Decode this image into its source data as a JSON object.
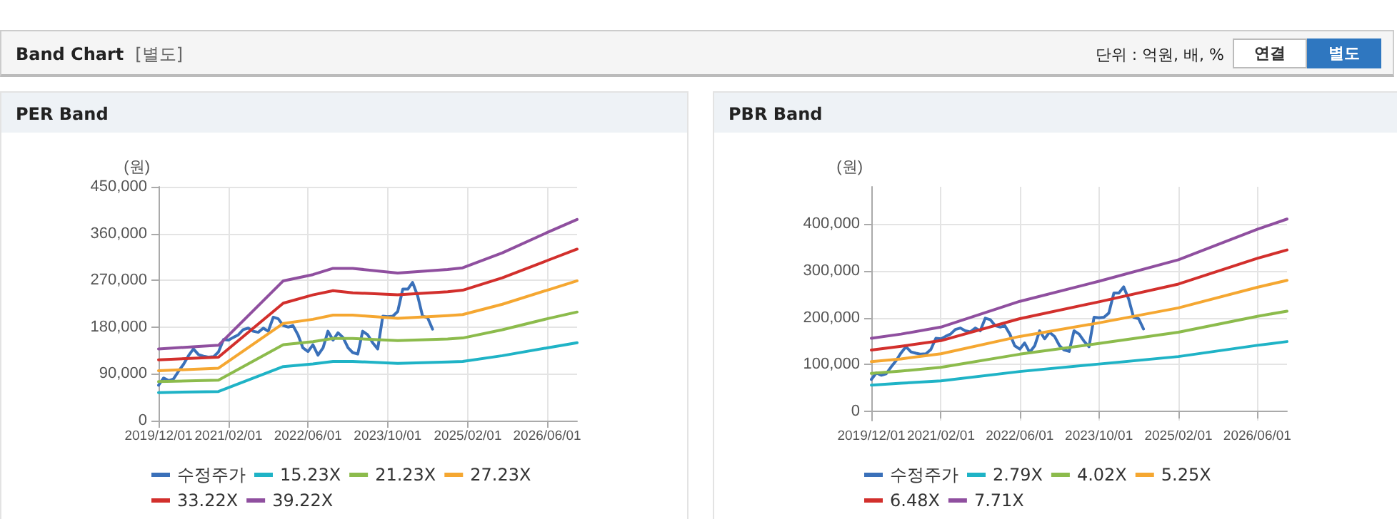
{
  "chart_data": [
    {
      "type": "other",
      "title": "Band Chart",
      "subtitle": "[별도]",
      "annotations": [
        "단위 : 억원, 배, %",
        "연결",
        "별도"
      ]
    },
    {
      "type": "line",
      "title": "PER Band",
      "ylabel": "(원)",
      "xlim": [
        "2019-12-01",
        "2026-12-01"
      ],
      "xticks": [
        {
          "value": "2019-12-01",
          "label": "2019/12/01"
        },
        {
          "value": "2021-02-01",
          "label": "2021/02/01"
        },
        {
          "value": "2022-06-01",
          "label": "2022/06/01"
        },
        {
          "value": "2023-10-01",
          "label": "2023/10/01"
        },
        {
          "value": "2025-02-01",
          "label": "2025/02/01"
        },
        {
          "value": "2026-06-01",
          "label": "2026/06/01"
        }
      ],
      "ylim": [
        0,
        450000
      ],
      "yticks": [
        {
          "value": 0,
          "label": "0"
        },
        {
          "value": 90000,
          "label": "90,000"
        },
        {
          "value": 180000,
          "label": "180,000"
        },
        {
          "value": 270000,
          "label": "270,000"
        },
        {
          "value": 360000,
          "label": "360,000"
        },
        {
          "value": 450000,
          "label": "450,000"
        }
      ],
      "grid": true,
      "legend": "bottom",
      "marker": "none",
      "line_style": "solid",
      "series": [
        {
          "name": "수정주가",
          "color": "#3a70b9",
          "x": [
            "2019-12",
            "2020-01",
            "2020-02",
            "2020-03",
            "2020-04",
            "2020-05",
            "2020-06",
            "2020-07",
            "2020-08",
            "2020-09",
            "2020-10",
            "2020-11",
            "2020-12",
            "2021-01",
            "2021-02",
            "2021-03",
            "2021-04",
            "2021-05",
            "2021-06",
            "2021-07",
            "2021-08",
            "2021-09",
            "2021-10",
            "2021-11",
            "2021-12",
            "2022-01",
            "2022-02",
            "2022-03",
            "2022-04",
            "2022-05",
            "2022-06",
            "2022-07",
            "2022-08",
            "2022-09",
            "2022-10",
            "2022-11",
            "2022-12",
            "2023-01",
            "2023-02",
            "2023-03",
            "2023-04",
            "2023-05",
            "2023-06",
            "2023-07",
            "2023-08",
            "2023-09",
            "2023-10",
            "2023-11",
            "2023-12",
            "2024-01",
            "2024-02",
            "2024-03",
            "2024-04",
            "2024-05",
            "2024-06",
            "2024-07"
          ],
          "values": [
            68000,
            82000,
            77000,
            80000,
            95000,
            108000,
            125000,
            138000,
            127000,
            124000,
            122000,
            123000,
            132000,
            156000,
            155000,
            160000,
            165000,
            175000,
            178000,
            172000,
            170000,
            178000,
            172000,
            199000,
            196000,
            183000,
            180000,
            183000,
            165000,
            140000,
            133000,
            146000,
            126000,
            140000,
            172000,
            155000,
            169000,
            160000,
            140000,
            131000,
            128000,
            172000,
            165000,
            150000,
            138000,
            201000,
            200000,
            201000,
            210000,
            253000,
            253000,
            266000,
            240000,
            201000,
            198000,
            176000
          ]
        },
        {
          "name": "15.23X",
          "color": "#1fb3c6",
          "x": [
            "2019-12",
            "2020-12",
            "2022-01",
            "2022-07",
            "2022-11",
            "2023-03",
            "2023-12",
            "2024-10",
            "2025-01",
            "2025-09",
            "2026-06",
            "2026-12"
          ],
          "values": [
            54000,
            56000,
            104000,
            109000,
            114000,
            114000,
            110000,
            113000,
            114000,
            125000,
            140000,
            150000
          ]
        },
        {
          "name": "21.23X",
          "color": "#8cbb4c",
          "x": [
            "2019-12",
            "2020-12",
            "2022-01",
            "2022-07",
            "2022-11",
            "2023-03",
            "2023-12",
            "2024-10",
            "2025-01",
            "2025-09",
            "2026-06",
            "2026-12"
          ],
          "values": [
            75000,
            78000,
            146000,
            152000,
            158000,
            158000,
            154000,
            157000,
            159000,
            175000,
            196000,
            209000
          ]
        },
        {
          "name": "27.23X",
          "color": "#f5a731",
          "x": [
            "2019-12",
            "2020-12",
            "2022-01",
            "2022-07",
            "2022-11",
            "2023-03",
            "2023-12",
            "2024-10",
            "2025-01",
            "2025-09",
            "2026-06",
            "2026-12"
          ],
          "values": [
            96000,
            101000,
            187000,
            195000,
            203000,
            203000,
            197000,
            202000,
            204000,
            224000,
            251000,
            269000
          ]
        },
        {
          "name": "33.22X",
          "color": "#d22f2c",
          "x": [
            "2019-12",
            "2020-12",
            "2022-01",
            "2022-07",
            "2022-11",
            "2023-03",
            "2023-12",
            "2024-10",
            "2025-01",
            "2025-09",
            "2026-06",
            "2026-12"
          ],
          "values": [
            117000,
            122000,
            226000,
            242000,
            250000,
            246000,
            242000,
            248000,
            251000,
            275000,
            308000,
            330000
          ]
        },
        {
          "name": "39.22X",
          "color": "#8f4f9f",
          "x": [
            "2019-12",
            "2020-12",
            "2022-01",
            "2022-07",
            "2022-11",
            "2023-03",
            "2023-12",
            "2024-10",
            "2025-01",
            "2025-09",
            "2026-06",
            "2026-12"
          ],
          "values": [
            138000,
            145000,
            269000,
            281000,
            293000,
            293000,
            284000,
            291000,
            294000,
            323000,
            362000,
            387000
          ]
        }
      ]
    },
    {
      "type": "line",
      "title": "PBR Band",
      "ylabel": "(원)",
      "xlim": [
        "2019-12-01",
        "2026-12-01"
      ],
      "xticks": [
        {
          "value": "2019-12-01",
          "label": "2019/12/01"
        },
        {
          "value": "2021-02-01",
          "label": "2021/02/01"
        },
        {
          "value": "2022-06-01",
          "label": "2022/06/01"
        },
        {
          "value": "2023-10-01",
          "label": "2023/10/01"
        },
        {
          "value": "2025-02-01",
          "label": "2025/02/01"
        },
        {
          "value": "2026-06-01",
          "label": "2026/06/01"
        }
      ],
      "ylim": [
        -20000,
        480000
      ],
      "yticks": [
        {
          "value": 0,
          "label": "0"
        },
        {
          "value": 100000,
          "label": "100,000"
        },
        {
          "value": 200000,
          "label": "200,000"
        },
        {
          "value": 300000,
          "label": "300,000"
        },
        {
          "value": 400000,
          "label": "400,000"
        }
      ],
      "grid": true,
      "legend": "bottom",
      "marker": "none",
      "line_style": "solid",
      "series": [
        {
          "name": "수정주가",
          "color": "#3a70b9",
          "x": [
            "2019-12",
            "2020-01",
            "2020-02",
            "2020-03",
            "2020-04",
            "2020-05",
            "2020-06",
            "2020-07",
            "2020-08",
            "2020-09",
            "2020-10",
            "2020-11",
            "2020-12",
            "2021-01",
            "2021-02",
            "2021-03",
            "2021-04",
            "2021-05",
            "2021-06",
            "2021-07",
            "2021-08",
            "2021-09",
            "2021-10",
            "2021-11",
            "2021-12",
            "2022-01",
            "2022-02",
            "2022-03",
            "2022-04",
            "2022-05",
            "2022-06",
            "2022-07",
            "2022-08",
            "2022-09",
            "2022-10",
            "2022-11",
            "2022-12",
            "2023-01",
            "2023-02",
            "2023-03",
            "2023-04",
            "2023-05",
            "2023-06",
            "2023-07",
            "2023-08",
            "2023-09",
            "2023-10",
            "2023-11",
            "2023-12",
            "2024-01",
            "2024-02",
            "2024-03",
            "2024-04",
            "2024-05",
            "2024-06",
            "2024-07"
          ],
          "values": [
            68000,
            82000,
            77000,
            80000,
            95000,
            108000,
            125000,
            138000,
            127000,
            124000,
            122000,
            123000,
            132000,
            156000,
            155000,
            160000,
            165000,
            175000,
            178000,
            172000,
            170000,
            178000,
            172000,
            199000,
            196000,
            183000,
            180000,
            183000,
            165000,
            140000,
            133000,
            146000,
            126000,
            140000,
            172000,
            155000,
            169000,
            160000,
            140000,
            131000,
            128000,
            172000,
            165000,
            150000,
            138000,
            201000,
            200000,
            201000,
            210000,
            253000,
            253000,
            266000,
            240000,
            201000,
            198000,
            176000
          ]
        },
        {
          "name": "2.79X",
          "color": "#1fb3c6",
          "x": [
            "2019-12",
            "2020-06",
            "2021-02",
            "2022-06",
            "2023-10",
            "2025-02",
            "2026-06",
            "2026-12"
          ],
          "values": [
            56000,
            60000,
            65000,
            85000,
            101000,
            117000,
            141000,
            149000
          ]
        },
        {
          "name": "4.02X",
          "color": "#8cbb4c",
          "x": [
            "2019-12",
            "2020-06",
            "2021-02",
            "2022-06",
            "2023-10",
            "2025-02",
            "2026-06",
            "2026-12"
          ],
          "values": [
            81000,
            86000,
            94000,
            122000,
            145000,
            169000,
            203000,
            214000
          ]
        },
        {
          "name": "5.25X",
          "color": "#f5a731",
          "x": [
            "2019-12",
            "2020-06",
            "2021-02",
            "2022-06",
            "2023-10",
            "2025-02",
            "2026-06",
            "2026-12"
          ],
          "values": [
            106000,
            112000,
            123000,
            160000,
            189000,
            221000,
            265000,
            280000
          ]
        },
        {
          "name": "6.48X",
          "color": "#d22f2c",
          "x": [
            "2019-12",
            "2020-06",
            "2021-02",
            "2022-06",
            "2023-10",
            "2025-02",
            "2026-06",
            "2026-12"
          ],
          "values": [
            131000,
            139000,
            151000,
            198000,
            234000,
            272000,
            327000,
            345000
          ]
        },
        {
          "name": "7.71X",
          "color": "#8f4f9f",
          "x": [
            "2019-12",
            "2020-06",
            "2021-02",
            "2022-06",
            "2023-10",
            "2025-02",
            "2026-06",
            "2026-12"
          ],
          "values": [
            156000,
            165000,
            180000,
            235000,
            278000,
            324000,
            389000,
            411000
          ]
        }
      ]
    }
  ]
}
